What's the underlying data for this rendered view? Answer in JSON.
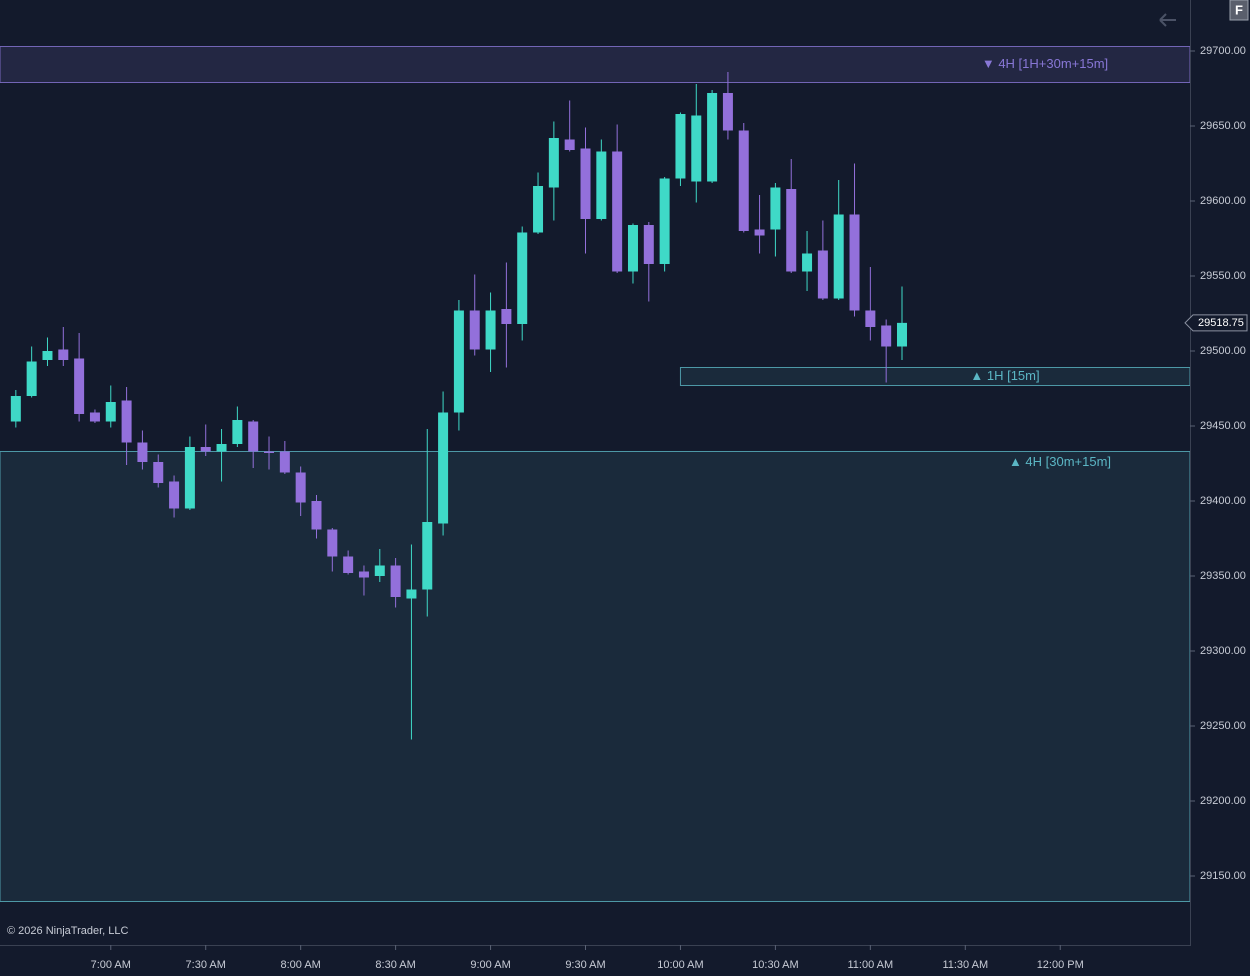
{
  "chart_data": {
    "type": "candlestick",
    "x": [
      "6:30 AM",
      "6:35 AM",
      "6:40 AM",
      "6:45 AM",
      "6:50 AM",
      "6:55 AM",
      "7:00 AM",
      "7:05 AM",
      "7:10 AM",
      "7:15 AM",
      "7:20 AM",
      "7:25 AM",
      "7:30 AM",
      "7:35 AM",
      "7:40 AM",
      "7:45 AM",
      "7:50 AM",
      "7:55 AM",
      "8:00 AM",
      "8:05 AM",
      "8:10 AM",
      "8:15 AM",
      "8:20 AM",
      "8:25 AM",
      "8:30 AM",
      "8:35 AM",
      "8:40 AM",
      "8:45 AM",
      "8:50 AM",
      "8:55 AM",
      "9:00 AM",
      "9:05 AM",
      "9:10 AM",
      "9:15 AM",
      "9:20 AM",
      "9:25 AM",
      "9:30 AM",
      "9:35 AM",
      "9:40 AM",
      "9:45 AM",
      "9:50 AM",
      "9:55 AM",
      "10:00 AM",
      "10:05 AM",
      "10:10 AM",
      "10:15 AM",
      "10:20 AM",
      "10:25 AM",
      "10:30 AM",
      "10:35 AM",
      "10:40 AM",
      "10:45 AM",
      "10:50 AM",
      "10:55 AM",
      "11:00 AM",
      "11:05 AM",
      "11:10 AM"
    ],
    "open": [
      29453,
      29470,
      29494,
      29501,
      29495,
      29459,
      29453,
      29467,
      29439,
      29426,
      29413,
      29395,
      29436,
      29433,
      29438,
      29453,
      29433,
      29433,
      29419,
      29400,
      29381,
      29363,
      29353,
      29350,
      29357,
      29335,
      29341,
      29385,
      29459,
      29527,
      29501,
      29528,
      29518,
      29579,
      29609,
      29641,
      29635,
      29588,
      29633,
      29553,
      29584,
      29558,
      29615,
      29613,
      29613,
      29672,
      29647,
      29581,
      29581,
      29608,
      29553,
      29567,
      29535,
      29591,
      29527,
      29517,
      29503
    ],
    "high": [
      29474,
      29503,
      29509,
      29516,
      29512,
      29461,
      29477,
      29476,
      29447,
      29431,
      29417,
      29443,
      29451,
      29448,
      29463,
      29454,
      29443,
      29440,
      29423,
      29404,
      29382,
      29367,
      29357,
      29368,
      29362,
      29371,
      29448,
      29473,
      29534,
      29551,
      29539,
      29559,
      29583,
      29619,
      29653,
      29667,
      29649,
      29641,
      29651,
      29585,
      29586,
      29616,
      29659,
      29678,
      29674,
      29686,
      29652,
      29604,
      29612,
      29628,
      29580,
      29587,
      29614,
      29625,
      29556,
      29521,
      29543
    ],
    "low": [
      29449,
      29469,
      29490,
      29490,
      29453,
      29452,
      29449,
      29424,
      29421,
      29409,
      29389,
      29394,
      29430,
      29413,
      29436,
      29422,
      29421,
      29418,
      29390,
      29375,
      29353,
      29351,
      29337,
      29346,
      29329,
      29241,
      29323,
      29377,
      29447,
      29497,
      29486,
      29489,
      29507,
      29578,
      29587,
      29633,
      29565,
      29587,
      29552,
      29545,
      29533,
      29553,
      29610,
      29599,
      29612,
      29641,
      29579,
      29565,
      29563,
      29552,
      29540,
      29534,
      29534,
      29523,
      29507,
      29479,
      29494
    ],
    "close": [
      29470,
      29493,
      29500,
      29494,
      29458,
      29453,
      29466,
      29439,
      29426,
      29412,
      29395,
      29436,
      29433,
      29438,
      29454,
      29433,
      29432,
      29419,
      29399,
      29381,
      29363,
      29352,
      29349,
      29357,
      29336,
      29341,
      29386,
      29459,
      29527,
      29501,
      29527,
      29518,
      29579,
      29610,
      29642,
      29634,
      29588,
      29633,
      29553,
      29584,
      29558,
      29615,
      29658,
      29657,
      29672,
      29647,
      29580,
      29577,
      29609,
      29553,
      29565,
      29535,
      29591,
      29527,
      29516,
      29503,
      29518.75
    ],
    "up_color": "#3fd9c7",
    "down_color": "#9370db",
    "xlim": [
      "6:25 AM",
      "12:41 PM"
    ],
    "xticks": [
      "7:00 AM",
      "7:30 AM",
      "8:00 AM",
      "8:30 AM",
      "9:00 AM",
      "9:30 AM",
      "10:00 AM",
      "10:30 AM",
      "11:00 AM",
      "11:30 AM",
      "12:00 PM"
    ],
    "ylim": [
      29104,
      29734
    ],
    "yticks": [
      {
        "value": 29150,
        "label": "29150.00"
      },
      {
        "value": 29200,
        "label": "29200.00"
      },
      {
        "value": 29250,
        "label": "29250.00"
      },
      {
        "value": 29300,
        "label": "29300.00"
      },
      {
        "value": 29350,
        "label": "29350.00"
      },
      {
        "value": 29400,
        "label": "29400.00"
      },
      {
        "value": 29450,
        "label": "29450.00"
      },
      {
        "value": 29500,
        "label": "29500.00"
      },
      {
        "value": 29550,
        "label": "29550.00"
      },
      {
        "value": 29600,
        "label": "29600.00"
      },
      {
        "value": 29650,
        "label": "29650.00"
      },
      {
        "value": 29700,
        "label": "29700.00"
      }
    ],
    "zones": [
      {
        "label": "▼ 4H [1H+30m+15m]",
        "top": 29703,
        "bottom": 29679,
        "color": "#8877d6"
      },
      {
        "label": "▲ 1H [15m]",
        "top": 29489,
        "bottom": 29477,
        "start": "10:00 AM",
        "color": "#5bb6c4"
      },
      {
        "label": "▲ 4H [30m+15m]",
        "top": 29433,
        "bottom": 29133,
        "color": "#5bb6c4"
      }
    ],
    "copyright": "© 2026 NinjaTrader, LLC"
  }
}
